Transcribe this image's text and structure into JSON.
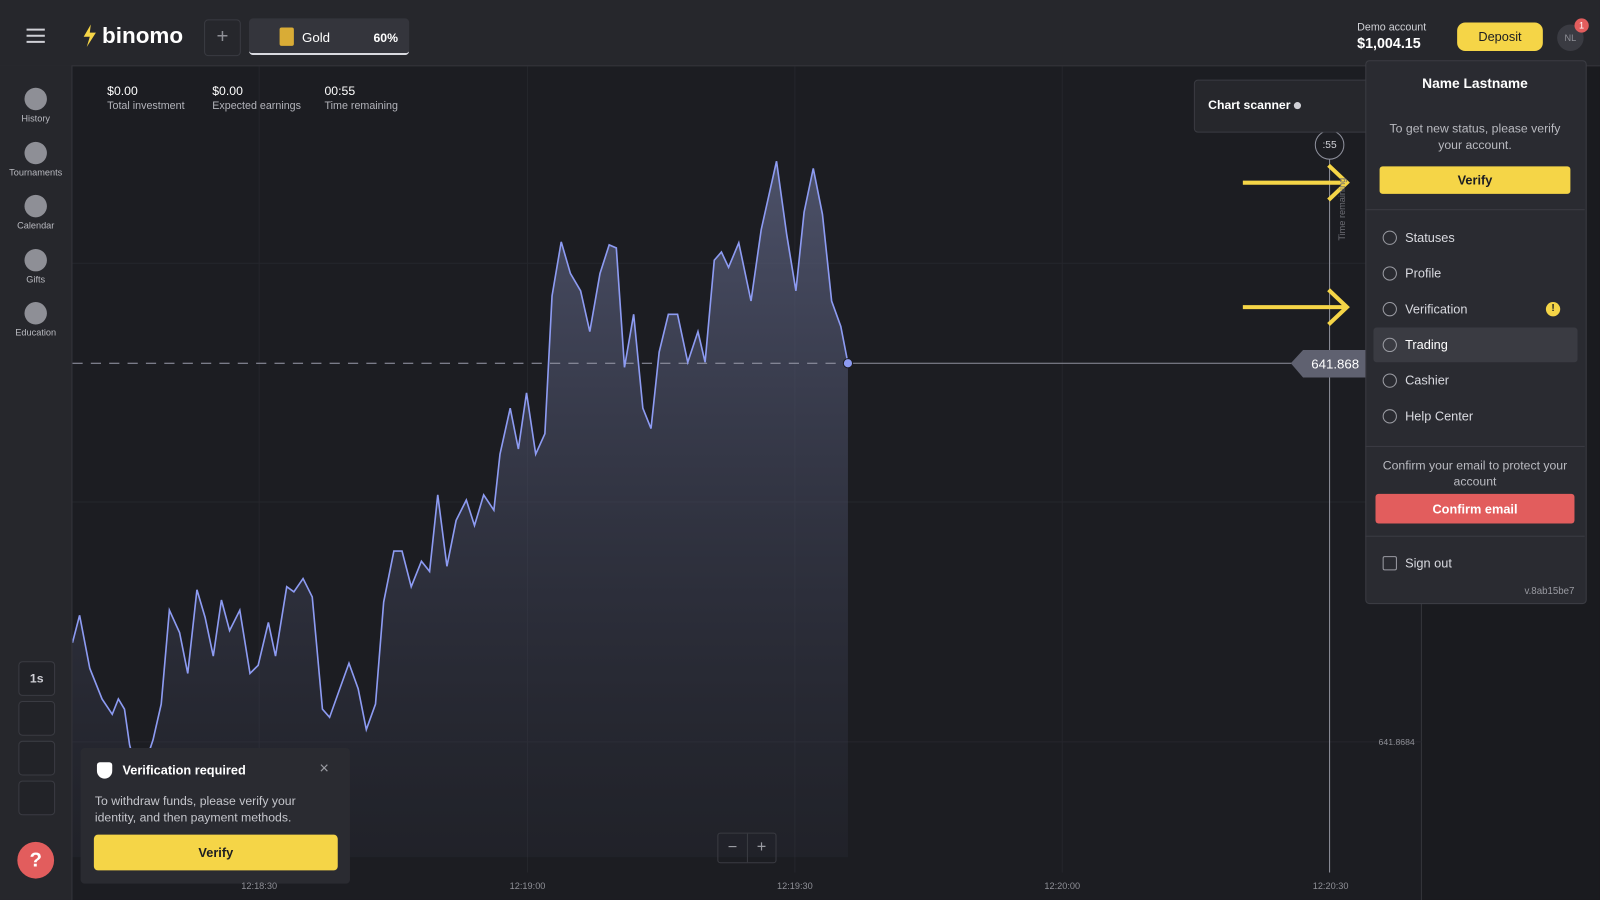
{
  "header": {
    "logo": "binomo",
    "asset": "Gold",
    "payout": "60%",
    "account_label": "Demo account",
    "balance": "$1,004.15",
    "deposit": "Deposit",
    "avatar": "NL",
    "notifications": "1"
  },
  "sidebar": {
    "items": [
      "History",
      "Tournaments",
      "Calendar",
      "Gifts",
      "Education"
    ],
    "timeframe": "1s"
  },
  "stats": [
    {
      "value": "$0.00",
      "label": "Total investment"
    },
    {
      "value": "$0.00",
      "label": "Expected earnings"
    },
    {
      "value": "00:55",
      "label": "Time remaining"
    }
  ],
  "chart": {
    "scanner": "Chart scanner",
    "timer": ":55",
    "time_label": "Time remaining",
    "price": "641.868",
    "axis_price": "641.8684",
    "x_labels": [
      "12:18:30",
      "12:19:00",
      "12:19:30",
      "12:20:00",
      "12:20:30"
    ]
  },
  "menu": {
    "name": "Name Lastname",
    "status_text": "To get new status, please verify your account.",
    "verify": "Verify",
    "items": [
      "Statuses",
      "Profile",
      "Verification",
      "Trading",
      "Cashier",
      "Help Center"
    ],
    "email_text": "Confirm your email to protect your account",
    "confirm_email": "Confirm email",
    "sign_out": "Sign out",
    "version": "v.8ab15be7"
  },
  "toast": {
    "title": "Verification required",
    "text": "To withdraw funds, please verify your identity, and then payment methods.",
    "verify": "Verify"
  }
}
